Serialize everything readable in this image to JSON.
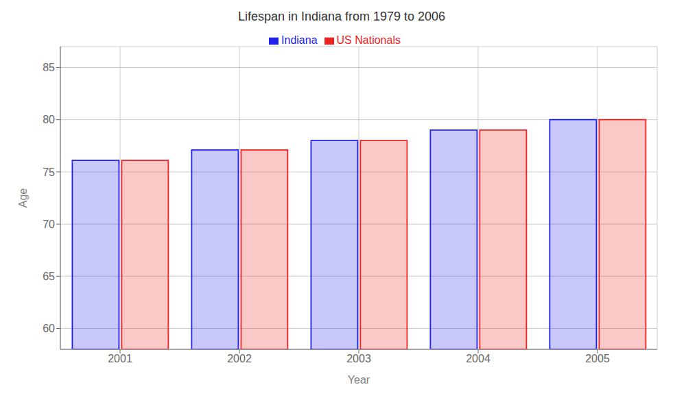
{
  "chart_data": {
    "type": "bar",
    "title": "Lifespan in Indiana from 1979 to 2006",
    "xlabel": "Year",
    "ylabel": "Age",
    "categories": [
      "2001",
      "2002",
      "2003",
      "2004",
      "2005"
    ],
    "series": [
      {
        "name": "Indiana",
        "color": "#2222ee",
        "values": [
          76.1,
          77.1,
          78.0,
          79.0,
          80.0
        ]
      },
      {
        "name": "US Nationals",
        "color": "#ee2222",
        "values": [
          76.1,
          77.1,
          78.0,
          79.0,
          80.0
        ]
      }
    ],
    "ylim": [
      58,
      87
    ],
    "yticks": [
      60,
      65,
      70,
      75,
      80,
      85
    ],
    "grid": true,
    "legend": "top"
  }
}
